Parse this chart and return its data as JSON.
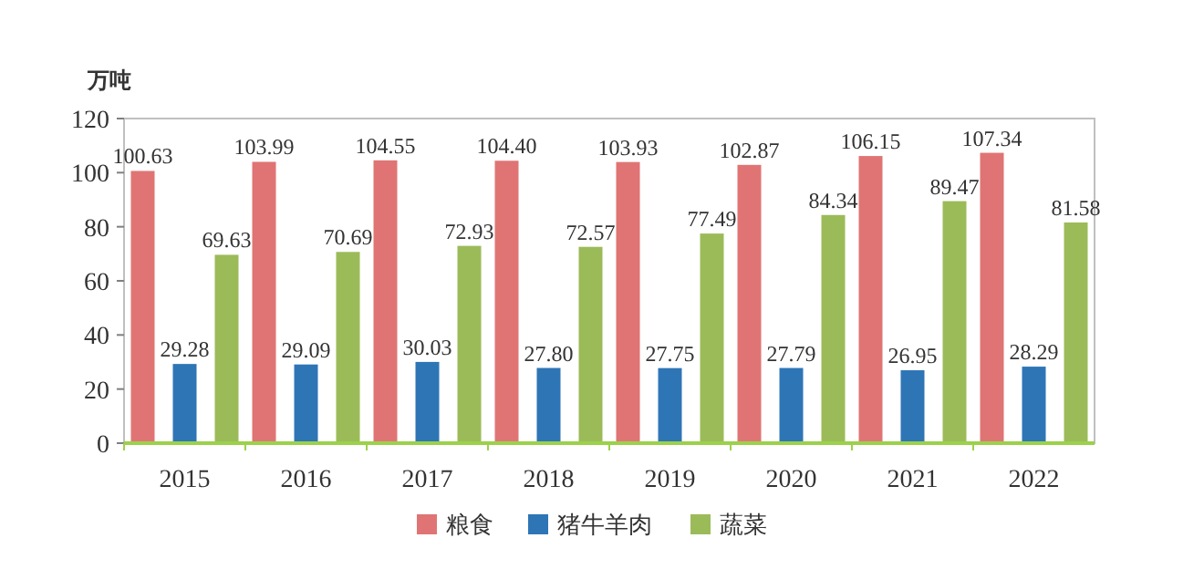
{
  "chart_data": {
    "type": "bar",
    "ylabel": "万吨",
    "categories": [
      "2015",
      "2016",
      "2017",
      "2018",
      "2019",
      "2020",
      "2021",
      "2022"
    ],
    "series": [
      {
        "name": "粮食",
        "color": "#e07474",
        "values": [
          100.63,
          103.99,
          104.55,
          104.4,
          103.93,
          102.87,
          106.15,
          107.34
        ],
        "value_labels": [
          "100.63",
          "103.99",
          "104.55",
          "104.40",
          "103.93",
          "102.87",
          "106.15",
          "107.34"
        ]
      },
      {
        "name": "猪牛羊肉",
        "color": "#2e75b6",
        "values": [
          29.28,
          29.09,
          30.03,
          27.8,
          27.75,
          27.79,
          26.95,
          28.29
        ],
        "value_labels": [
          "29.28",
          "29.09",
          "30.03",
          "27.80",
          "27.75",
          "27.79",
          "26.95",
          "28.29"
        ]
      },
      {
        "name": "蔬菜",
        "color": "#9bbb59",
        "values": [
          69.63,
          70.69,
          72.93,
          72.57,
          77.49,
          84.34,
          89.47,
          81.58
        ],
        "value_labels": [
          "69.63",
          "70.69",
          "72.93",
          "72.57",
          "77.49",
          "84.34",
          "89.47",
          "81.58"
        ]
      }
    ],
    "ylim": [
      0,
      120
    ],
    "yticks": [
      0,
      20,
      40,
      60,
      80,
      100,
      120
    ],
    "legend": "bottom"
  }
}
